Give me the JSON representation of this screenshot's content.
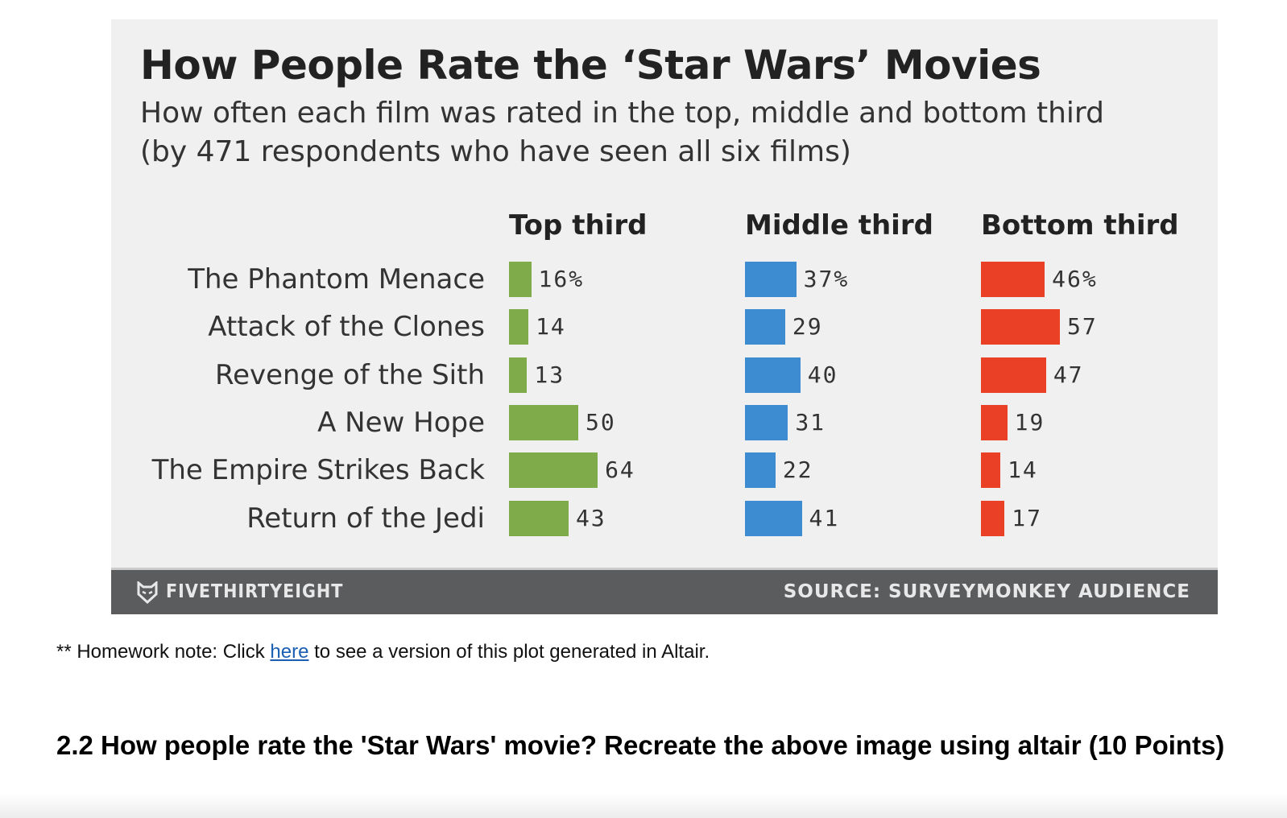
{
  "chart_data": {
    "type": "bar",
    "title": "How People Rate the ‘Star Wars’ Movies",
    "subtitle": [
      "How often each film was rated in the top, middle and bottom third",
      "(by 471 respondents who have seen all six films)"
    ],
    "categories": [
      "The Phantom Menace",
      "Attack of the Clones",
      "Revenge of the Sith",
      "A New Hope",
      "The Empire Strikes Back",
      "Return of the Jedi"
    ],
    "series": [
      {
        "name": "Top third",
        "color": "#7fab4b",
        "values": [
          16,
          14,
          13,
          50,
          64,
          43
        ]
      },
      {
        "name": "Middle third",
        "color": "#3d8bd0",
        "values": [
          37,
          29,
          40,
          31,
          22,
          41
        ]
      },
      {
        "name": "Bottom third",
        "color": "#ea4126",
        "values": [
          46,
          57,
          47,
          19,
          14,
          17
        ]
      }
    ],
    "value_labels": [
      [
        "16%",
        "14",
        "13",
        "50",
        "64",
        "43"
      ],
      [
        "37%",
        "29",
        "40",
        "31",
        "22",
        "41"
      ],
      [
        "46%",
        "57",
        "47",
        "19",
        "14",
        "17"
      ]
    ],
    "unit": "%",
    "grid": false
  },
  "footer": {
    "brand": "FIVETHIRTYEIGHT",
    "brand_icon": "fox-logo-icon",
    "source": "SOURCE: SURVEYMONKEY AUDIENCE"
  },
  "note": {
    "prefix": "** Homework note: Click ",
    "link": "here",
    "suffix": " to see a version of this plot generated in Altair."
  },
  "heading": "2.2 How people rate the 'Star Wars' movie? Recreate the above image using altair (10 Points)"
}
